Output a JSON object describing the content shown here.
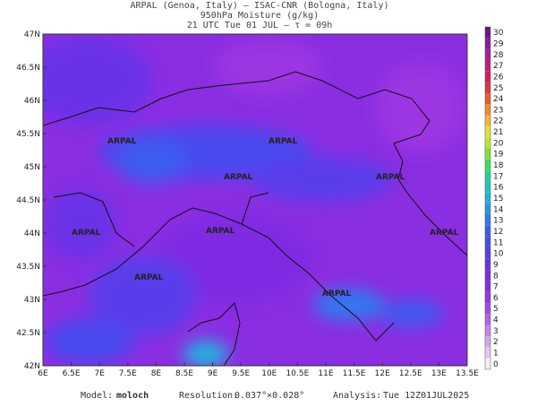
{
  "header": {
    "line1": "ARPAL (Genoa, Italy)  —  ISAC-CNR (Bologna, Italy)",
    "line2": "950hPa Moisture (g/kg)",
    "line3": "21 UTC Tue 01 JUL  —  τ = 09h"
  },
  "map": {
    "lon_labels": [
      "6E",
      "6.5E",
      "7E",
      "7.5E",
      "8E",
      "8.5E",
      "9E",
      "9.5E",
      "10E",
      "10.5E",
      "11E",
      "11.5E",
      "12E",
      "12.5E",
      "13E",
      "13.5E"
    ],
    "lat_labels": [
      "47N",
      "46.5N",
      "46N",
      "45.5N",
      "45N",
      "44.5N",
      "44N",
      "43.5N",
      "43N",
      "42.5N",
      "42N"
    ],
    "watermark": "ARPAL"
  },
  "colorbar": {
    "levels": [
      {
        "label": "0",
        "color": "#f4f0f8"
      },
      {
        "label": "1",
        "color": "#e2c8f2"
      },
      {
        "label": "2",
        "color": "#d4a6ee"
      },
      {
        "label": "3",
        "color": "#c483ea"
      },
      {
        "label": "4",
        "color": "#b462e6"
      },
      {
        "label": "5",
        "color": "#a646e4"
      },
      {
        "label": "6",
        "color": "#9a34e2"
      },
      {
        "label": "7",
        "color": "#8c2ae0"
      },
      {
        "label": "8",
        "color": "#7e2ae2"
      },
      {
        "label": "9",
        "color": "#6a30e6"
      },
      {
        "label": "10",
        "color": "#5a3cea"
      },
      {
        "label": "11",
        "color": "#4a4aee"
      },
      {
        "label": "12",
        "color": "#3c5cf0"
      },
      {
        "label": "13",
        "color": "#3278ee"
      },
      {
        "label": "14",
        "color": "#2a96e8"
      },
      {
        "label": "15",
        "color": "#22b4dc"
      },
      {
        "label": "16",
        "color": "#1ec8c0"
      },
      {
        "label": "17",
        "color": "#22d494"
      },
      {
        "label": "18",
        "color": "#3ede5c"
      },
      {
        "label": "19",
        "color": "#7ce43c"
      },
      {
        "label": "20",
        "color": "#b8e834"
      },
      {
        "label": "21",
        "color": "#e8e030"
      },
      {
        "label": "22",
        "color": "#f4b82c"
      },
      {
        "label": "23",
        "color": "#f48a2a"
      },
      {
        "label": "24",
        "color": "#ee5c2a"
      },
      {
        "label": "25",
        "color": "#e23438"
      },
      {
        "label": "26",
        "color": "#d41e58"
      },
      {
        "label": "27",
        "color": "#c41a7c"
      },
      {
        "label": "28",
        "color": "#a81c98"
      },
      {
        "label": "29",
        "color": "#8a1a9c"
      },
      {
        "label": "30",
        "color": "#6c1488"
      }
    ]
  },
  "footer": {
    "model_label": "Model:",
    "model": "moloch",
    "resolution_label": "Resolution:",
    "resolution": "0.037°×0.028°",
    "analysis_label": "Analysis:",
    "analysis": "Tue 12Z01JUL2025"
  }
}
